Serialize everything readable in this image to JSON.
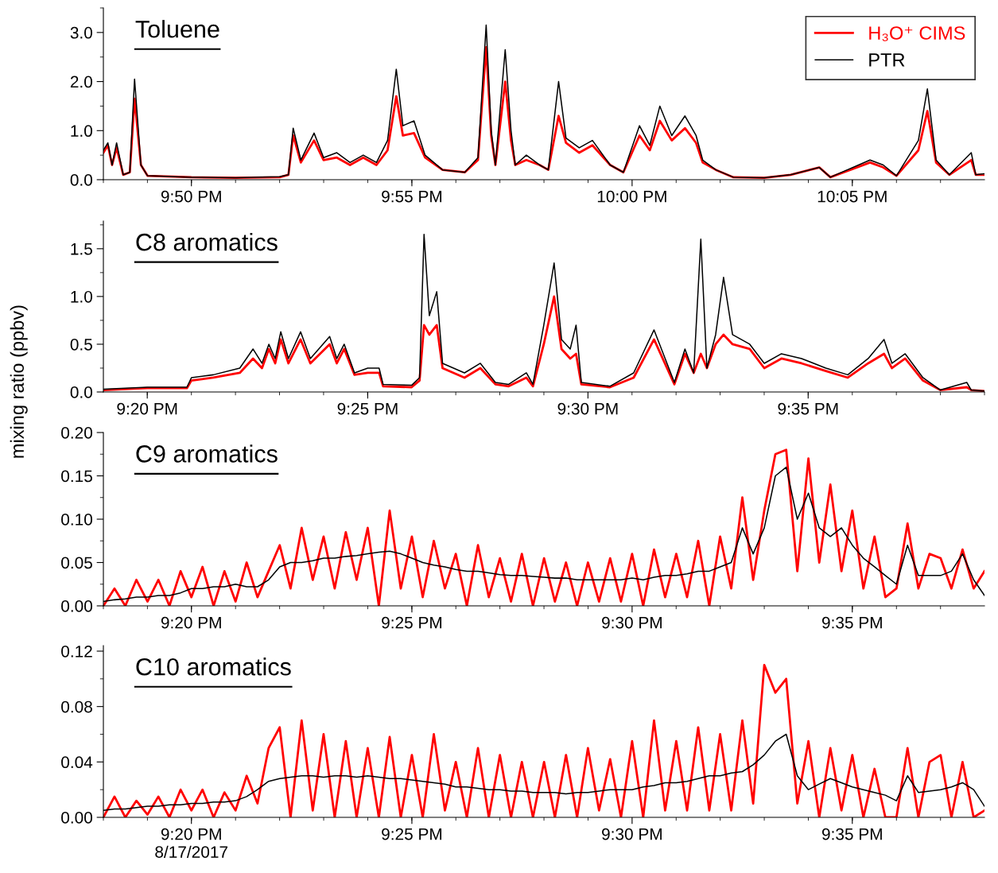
{
  "chart_data": [
    {
      "type": "line",
      "title": "Toluene",
      "legend": "top right",
      "line_style": "solid",
      "xlim": [
        21.8,
        22.1333
      ],
      "xticks": [
        {
          "value": 21.8333,
          "label": "9:50 PM"
        },
        {
          "value": 21.9167,
          "label": "9:55 PM"
        },
        {
          "value": 22.0,
          "label": "10:00 PM"
        },
        {
          "value": 22.0833,
          "label": "10:05 PM"
        }
      ],
      "ylim": [
        0,
        3.5
      ],
      "yticks": [
        {
          "value": 0,
          "label": "0.0"
        },
        {
          "value": 1,
          "label": "1.0"
        },
        {
          "value": 2,
          "label": "2.0"
        },
        {
          "value": 3,
          "label": "3.0"
        }
      ],
      "x": [
        21.8,
        21.8017,
        21.8033,
        21.805,
        21.8075,
        21.81,
        21.8118,
        21.8142,
        21.8167,
        21.8333,
        21.85,
        21.8667,
        21.87,
        21.8718,
        21.8747,
        21.8797,
        21.8833,
        21.8883,
        21.8933,
        21.8983,
        21.9033,
        21.9075,
        21.9108,
        21.9133,
        21.9175,
        21.9217,
        21.9283,
        21.9367,
        21.9417,
        21.9448,
        21.9467,
        21.9483,
        21.952,
        21.9542,
        21.9558,
        21.96,
        21.965,
        21.9683,
        21.9722,
        21.975,
        21.98,
        21.985,
        21.9917,
        21.9967,
        22.0028,
        22.0067,
        22.0105,
        22.015,
        22.02,
        22.0242,
        22.0267,
        22.0317,
        22.0383,
        22.05,
        22.06,
        22.0708,
        22.075,
        22.09,
        22.095,
        22.1,
        22.1083,
        22.1117,
        22.115,
        22.12,
        22.1283,
        22.13,
        22.1333
      ],
      "series": [
        {
          "name": "H₃O⁺ CIMS",
          "color": "#ff0000",
          "values": [
            0.55,
            0.7,
            0.3,
            0.65,
            0.1,
            0.15,
            1.65,
            0.3,
            0.08,
            0.05,
            0.04,
            0.05,
            0.1,
            0.9,
            0.35,
            0.8,
            0.4,
            0.45,
            0.3,
            0.45,
            0.3,
            0.6,
            1.7,
            0.9,
            0.95,
            0.45,
            0.2,
            0.15,
            0.4,
            2.7,
            0.9,
            0.3,
            2.0,
            0.8,
            0.3,
            0.4,
            0.3,
            0.2,
            1.3,
            0.75,
            0.55,
            0.7,
            0.3,
            0.15,
            0.9,
            0.6,
            1.2,
            0.8,
            1.05,
            0.75,
            0.35,
            0.2,
            0.05,
            0.04,
            0.1,
            0.25,
            0.05,
            0.35,
            0.25,
            0.08,
            0.6,
            1.4,
            0.35,
            0.1,
            0.4,
            0.1,
            0.1
          ]
        },
        {
          "name": "PTR",
          "color": "#000000",
          "values": [
            0.6,
            0.75,
            0.3,
            0.75,
            0.1,
            0.15,
            2.05,
            0.3,
            0.08,
            0.05,
            0.04,
            0.06,
            0.1,
            1.05,
            0.4,
            0.95,
            0.45,
            0.55,
            0.35,
            0.5,
            0.35,
            0.8,
            2.25,
            1.1,
            1.2,
            0.5,
            0.2,
            0.15,
            0.45,
            3.15,
            1.0,
            0.3,
            2.65,
            1.0,
            0.3,
            0.5,
            0.3,
            0.2,
            2.0,
            0.85,
            0.65,
            0.8,
            0.3,
            0.15,
            1.1,
            0.7,
            1.5,
            0.9,
            1.3,
            0.9,
            0.4,
            0.2,
            0.05,
            0.04,
            0.1,
            0.25,
            0.05,
            0.4,
            0.3,
            0.08,
            0.8,
            1.85,
            0.4,
            0.1,
            0.55,
            0.1,
            0.12
          ]
        }
      ]
    },
    {
      "type": "line",
      "title": "C8 aromatics",
      "ylabel": "mixing ratio (ppbv)",
      "line_style": "solid",
      "xlim": [
        21.3167,
        21.65
      ],
      "xticks": [
        {
          "value": 21.3333,
          "label": "9:20 PM"
        },
        {
          "value": 21.4167,
          "label": "9:25 PM"
        },
        {
          "value": 21.5,
          "label": "9:30 PM"
        },
        {
          "value": 21.5833,
          "label": "9:35 PM"
        }
      ],
      "ylim": [
        0,
        1.79
      ],
      "yticks": [
        {
          "value": 0,
          "label": "0.0"
        },
        {
          "value": 0.5,
          "label": "0.5"
        },
        {
          "value": 1,
          "label": "1.0"
        },
        {
          "value": 1.5,
          "label": "1.5"
        }
      ],
      "x": [
        21.3167,
        21.3333,
        21.3483,
        21.35,
        21.3583,
        21.3683,
        21.3733,
        21.3767,
        21.3793,
        21.3817,
        21.3838,
        21.3867,
        21.3913,
        21.395,
        21.4023,
        21.405,
        21.4078,
        21.4117,
        21.4167,
        21.421,
        21.4225,
        21.4333,
        21.4363,
        21.438,
        21.44,
        21.4428,
        21.445,
        21.4533,
        21.4593,
        21.465,
        21.47,
        21.4767,
        21.4792,
        21.4833,
        21.4872,
        21.49,
        21.4933,
        21.4955,
        21.4975,
        21.5083,
        21.5173,
        21.525,
        21.5327,
        21.5367,
        21.54,
        21.5427,
        21.545,
        21.5483,
        21.5513,
        21.5547,
        21.5612,
        21.5667,
        21.5732,
        21.5808,
        21.59,
        21.5983,
        21.606,
        21.612,
        21.615,
        21.62,
        21.6267,
        21.6333,
        21.6433,
        21.645,
        21.65
      ],
      "series": [
        {
          "color": "#ff0000",
          "values": [
            0.02,
            0.04,
            0.04,
            0.12,
            0.15,
            0.2,
            0.35,
            0.25,
            0.45,
            0.3,
            0.55,
            0.3,
            0.55,
            0.3,
            0.5,
            0.3,
            0.45,
            0.18,
            0.2,
            0.2,
            0.06,
            0.05,
            0.12,
            0.7,
            0.6,
            0.7,
            0.25,
            0.15,
            0.25,
            0.08,
            0.06,
            0.15,
            0.06,
            0.5,
            1.0,
            0.45,
            0.35,
            0.4,
            0.08,
            0.05,
            0.15,
            0.55,
            0.08,
            0.4,
            0.2,
            0.4,
            0.25,
            0.5,
            0.6,
            0.5,
            0.45,
            0.25,
            0.35,
            0.3,
            0.22,
            0.15,
            0.3,
            0.4,
            0.25,
            0.35,
            0.12,
            0.02,
            0.05,
            0.02,
            0.01
          ]
        },
        {
          "color": "#000000",
          "values": [
            0.03,
            0.05,
            0.05,
            0.15,
            0.18,
            0.25,
            0.45,
            0.3,
            0.5,
            0.35,
            0.63,
            0.35,
            0.63,
            0.35,
            0.58,
            0.35,
            0.5,
            0.2,
            0.25,
            0.25,
            0.08,
            0.07,
            0.15,
            1.65,
            0.8,
            1.05,
            0.3,
            0.2,
            0.3,
            0.1,
            0.08,
            0.2,
            0.08,
            0.7,
            1.35,
            0.55,
            0.45,
            0.7,
            0.1,
            0.06,
            0.2,
            0.65,
            0.1,
            0.45,
            0.2,
            1.6,
            0.25,
            0.6,
            1.2,
            0.6,
            0.5,
            0.3,
            0.4,
            0.35,
            0.25,
            0.18,
            0.35,
            0.55,
            0.3,
            0.4,
            0.15,
            0.02,
            0.1,
            0.02,
            0.01
          ]
        }
      ]
    },
    {
      "type": "line",
      "title": "C9 aromatics",
      "line_style": "solid",
      "xlim": [
        21.3,
        21.6333
      ],
      "xticks": [
        {
          "value": 21.3333,
          "label": "9:20 PM"
        },
        {
          "value": 21.4167,
          "label": "9:25 PM"
        },
        {
          "value": 21.5,
          "label": "9:30 PM"
        },
        {
          "value": 21.5833,
          "label": "9:35 PM"
        }
      ],
      "ylim": [
        0,
        0.2
      ],
      "yticks": [
        {
          "value": 0,
          "label": "0.00"
        },
        {
          "value": 0.05,
          "label": "0.05"
        },
        {
          "value": 0.1,
          "label": "0.10"
        },
        {
          "value": 0.15,
          "label": "0.15"
        },
        {
          "value": 0.2,
          "label": "0.20"
        }
      ],
      "x": [
        21.3,
        21.3042,
        21.3083,
        21.3125,
        21.3167,
        21.3208,
        21.325,
        21.3292,
        21.3333,
        21.3375,
        21.3417,
        21.3458,
        21.35,
        21.3542,
        21.3583,
        21.3625,
        21.3667,
        21.3708,
        21.375,
        21.3792,
        21.3833,
        21.3875,
        21.3917,
        21.3958,
        21.4,
        21.4042,
        21.4083,
        21.4125,
        21.4167,
        21.4208,
        21.425,
        21.4292,
        21.4333,
        21.4375,
        21.4417,
        21.4458,
        21.45,
        21.4542,
        21.4583,
        21.4625,
        21.4667,
        21.4708,
        21.475,
        21.4792,
        21.4833,
        21.4875,
        21.4917,
        21.4958,
        21.5,
        21.5042,
        21.5083,
        21.5125,
        21.5167,
        21.5208,
        21.525,
        21.5292,
        21.5333,
        21.5375,
        21.5417,
        21.5458,
        21.55,
        21.5542,
        21.5583,
        21.5625,
        21.5667,
        21.5708,
        21.575,
        21.5792,
        21.5833,
        21.5875,
        21.5917,
        21.5958,
        21.6,
        21.6042,
        21.6083,
        21.6125,
        21.6167,
        21.6208,
        21.625,
        21.6292,
        21.6333
      ],
      "series": [
        {
          "color": "#ff0000",
          "values": [
            0.0,
            0.02,
            0.0,
            0.03,
            0.005,
            0.03,
            0.0,
            0.04,
            0.01,
            0.045,
            0.0,
            0.04,
            0.005,
            0.05,
            0.01,
            0.04,
            0.07,
            0.02,
            0.09,
            0.03,
            0.08,
            0.02,
            0.085,
            0.03,
            0.09,
            0.0,
            0.11,
            0.02,
            0.08,
            0.01,
            0.075,
            0.02,
            0.06,
            0.0,
            0.07,
            0.01,
            0.055,
            0.005,
            0.06,
            0.0,
            0.055,
            0.005,
            0.05,
            0.0,
            0.05,
            0.005,
            0.055,
            0.005,
            0.06,
            0.0,
            0.065,
            0.01,
            0.06,
            0.01,
            0.075,
            0.0,
            0.08,
            0.02,
            0.125,
            0.03,
            0.11,
            0.175,
            0.18,
            0.04,
            0.17,
            0.05,
            0.14,
            0.04,
            0.11,
            0.02,
            0.08,
            0.01,
            0.02,
            0.095,
            0.02,
            0.06,
            0.055,
            0.02,
            0.065,
            0.02,
            0.04
          ]
        },
        {
          "color": "#000000",
          "values": [
            0.005,
            0.007,
            0.008,
            0.01,
            0.01,
            0.012,
            0.012,
            0.015,
            0.02,
            0.02,
            0.022,
            0.022,
            0.025,
            0.022,
            0.022,
            0.03,
            0.045,
            0.05,
            0.05,
            0.052,
            0.055,
            0.055,
            0.057,
            0.058,
            0.06,
            0.062,
            0.063,
            0.06,
            0.055,
            0.05,
            0.047,
            0.045,
            0.042,
            0.04,
            0.04,
            0.038,
            0.036,
            0.035,
            0.035,
            0.034,
            0.033,
            0.032,
            0.032,
            0.03,
            0.03,
            0.03,
            0.03,
            0.03,
            0.032,
            0.03,
            0.033,
            0.035,
            0.035,
            0.037,
            0.04,
            0.04,
            0.045,
            0.05,
            0.09,
            0.06,
            0.09,
            0.15,
            0.16,
            0.1,
            0.13,
            0.09,
            0.08,
            0.09,
            0.07,
            0.055,
            0.045,
            0.035,
            0.025,
            0.07,
            0.035,
            0.035,
            0.035,
            0.04,
            0.06,
            0.03,
            0.012
          ]
        }
      ]
    },
    {
      "type": "line",
      "title": "C10 aromatics",
      "line_style": "solid",
      "xlim": [
        21.3,
        21.6333
      ],
      "xticks": [
        {
          "value": 21.3333,
          "label": "9:20 PM\n8/17/2017"
        },
        {
          "value": 21.4167,
          "label": "9:25 PM"
        },
        {
          "value": 21.5,
          "label": "9:30 PM"
        },
        {
          "value": 21.5833,
          "label": "9:35 PM"
        }
      ],
      "ylim": [
        0,
        0.124
      ],
      "yticks": [
        {
          "value": 0,
          "label": "0.00"
        },
        {
          "value": 0.04,
          "label": "0.04"
        },
        {
          "value": 0.08,
          "label": "0.08"
        },
        {
          "value": 0.12,
          "label": "0.12"
        }
      ],
      "x": [
        21.3,
        21.3042,
        21.3083,
        21.3125,
        21.3167,
        21.3208,
        21.325,
        21.3292,
        21.3333,
        21.3375,
        21.3417,
        21.3458,
        21.35,
        21.3542,
        21.3583,
        21.3625,
        21.3667,
        21.3708,
        21.375,
        21.3792,
        21.3833,
        21.3875,
        21.3917,
        21.3958,
        21.4,
        21.4042,
        21.4083,
        21.4125,
        21.4167,
        21.4208,
        21.425,
        21.4292,
        21.4333,
        21.4375,
        21.4417,
        21.4458,
        21.45,
        21.4542,
        21.4583,
        21.4625,
        21.4667,
        21.4708,
        21.475,
        21.4792,
        21.4833,
        21.4875,
        21.4917,
        21.4958,
        21.5,
        21.5042,
        21.5083,
        21.5125,
        21.5167,
        21.5208,
        21.525,
        21.5292,
        21.5333,
        21.5375,
        21.5417,
        21.5458,
        21.55,
        21.5542,
        21.5583,
        21.5625,
        21.5667,
        21.5708,
        21.575,
        21.5792,
        21.5833,
        21.5875,
        21.5917,
        21.5958,
        21.6,
        21.6042,
        21.6083,
        21.6125,
        21.6167,
        21.6208,
        21.625,
        21.6292,
        21.6333
      ],
      "series": [
        {
          "color": "#ff0000",
          "values": [
            0.0,
            0.015,
            0.0,
            0.012,
            0.002,
            0.015,
            0.0,
            0.02,
            0.005,
            0.02,
            0.0,
            0.018,
            0.005,
            0.03,
            0.01,
            0.05,
            0.065,
            0.0,
            0.07,
            0.005,
            0.06,
            0.0,
            0.055,
            0.0,
            0.05,
            0.0,
            0.058,
            0.0,
            0.045,
            0.0,
            0.06,
            0.005,
            0.04,
            0.0,
            0.05,
            0.0,
            0.045,
            0.0,
            0.04,
            0.0,
            0.04,
            0.0,
            0.045,
            0.0,
            0.05,
            0.005,
            0.042,
            0.0,
            0.055,
            0.0,
            0.07,
            0.005,
            0.055,
            0.005,
            0.065,
            0.005,
            0.06,
            0.005,
            0.07,
            0.01,
            0.11,
            0.09,
            0.1,
            0.01,
            0.055,
            0.0,
            0.05,
            0.005,
            0.045,
            0.0,
            0.035,
            0.0,
            0.0,
            0.05,
            0.0,
            0.04,
            0.045,
            0.0,
            0.04,
            0.0,
            0.005
          ]
        },
        {
          "color": "#000000",
          "values": [
            0.005,
            0.006,
            0.006,
            0.007,
            0.008,
            0.008,
            0.009,
            0.009,
            0.01,
            0.01,
            0.011,
            0.011,
            0.012,
            0.015,
            0.02,
            0.026,
            0.028,
            0.029,
            0.03,
            0.03,
            0.029,
            0.03,
            0.03,
            0.029,
            0.03,
            0.029,
            0.028,
            0.028,
            0.027,
            0.026,
            0.025,
            0.024,
            0.022,
            0.022,
            0.021,
            0.02,
            0.02,
            0.019,
            0.019,
            0.018,
            0.018,
            0.018,
            0.017,
            0.018,
            0.018,
            0.019,
            0.02,
            0.02,
            0.02,
            0.022,
            0.023,
            0.025,
            0.025,
            0.026,
            0.028,
            0.03,
            0.03,
            0.032,
            0.033,
            0.038,
            0.045,
            0.055,
            0.06,
            0.03,
            0.02,
            0.024,
            0.028,
            0.025,
            0.022,
            0.02,
            0.018,
            0.016,
            0.012,
            0.03,
            0.018,
            0.019,
            0.02,
            0.022,
            0.025,
            0.02,
            0.008
          ]
        }
      ]
    }
  ]
}
